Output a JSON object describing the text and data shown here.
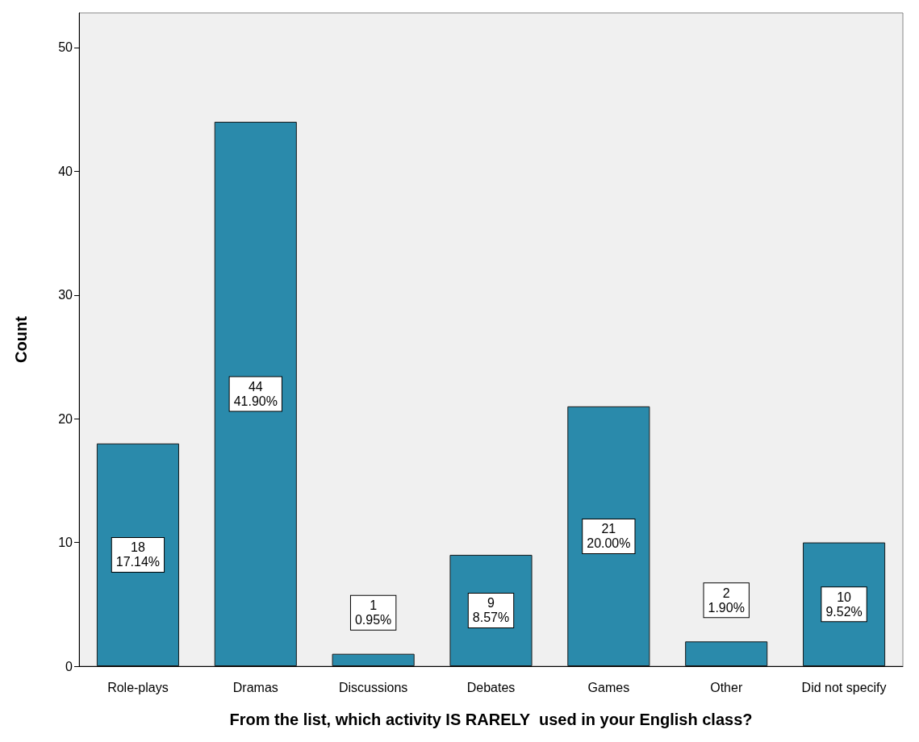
{
  "chart_data": {
    "type": "bar",
    "xlabel": "From the list, which activity IS RARELY  used in your English class?",
    "ylabel": "Count",
    "categories": [
      "Role-plays",
      "Dramas",
      "Discussions",
      "Debates",
      "Games",
      "Other",
      "Did not specify"
    ],
    "values": [
      18,
      44,
      1,
      9,
      21,
      2,
      10
    ],
    "value_labels": [
      "18\n17.14%",
      "44\n41.90%",
      "1\n0.95%",
      "9\n8.57%",
      "21\n20.00%",
      "2\n1.90%",
      "10\n9.52%"
    ],
    "color": "#2a8aab",
    "ylim": [
      0,
      52.8
    ],
    "yticks": [
      0,
      10,
      20,
      30,
      40,
      50
    ],
    "grid": false
  }
}
